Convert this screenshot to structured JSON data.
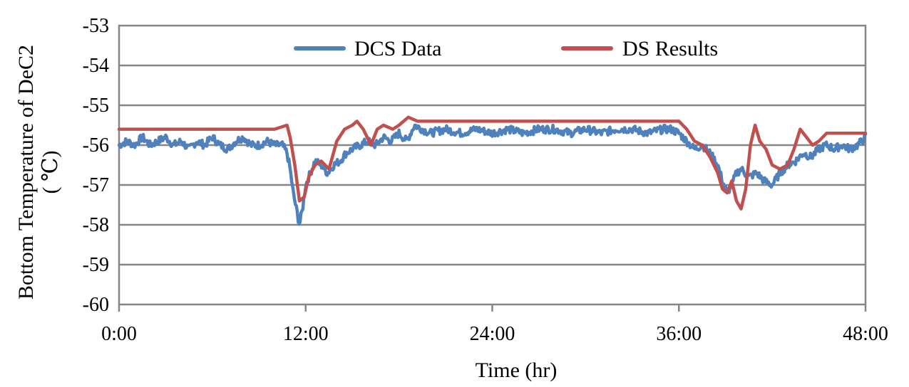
{
  "chart_data": {
    "type": "line",
    "title": "",
    "xlabel": "Time (hr)",
    "ylabel_lines": [
      "Bottom Temperature of DeC2",
      "( ℃)"
    ],
    "xlim": [
      0,
      48
    ],
    "ylim": [
      -60,
      -53
    ],
    "x_ticks": [
      0,
      12,
      24,
      36,
      48
    ],
    "x_tick_labels": [
      "0:00",
      "12:00",
      "24:00",
      "36:00",
      "48:00"
    ],
    "y_ticks": [
      -53,
      -54,
      -55,
      -56,
      -57,
      -58,
      -59,
      -60
    ],
    "y_tick_labels": [
      "-53",
      "-54",
      "-55",
      "-56",
      "-57",
      "-58",
      "-59",
      "-60"
    ],
    "grid": "horizontal",
    "legend_position": "top",
    "series": [
      {
        "name": "DCS Data",
        "color": "#4f81bd",
        "x": [
          0,
          0.5,
          1,
          1.5,
          2,
          2.5,
          3,
          3.5,
          4,
          4.5,
          5,
          5.5,
          6,
          6.5,
          7,
          7.5,
          8,
          8.5,
          9,
          9.5,
          10,
          10.5,
          10.8,
          11,
          11.2,
          11.4,
          11.6,
          11.8,
          12.0,
          12.3,
          12.6,
          13.0,
          13.4,
          13.8,
          14.2,
          14.6,
          15.0,
          15.5,
          16,
          16.5,
          17,
          17.5,
          18,
          18.5,
          19,
          19.5,
          20,
          21,
          22,
          23,
          24,
          25,
          26,
          27,
          28,
          29,
          30,
          31,
          32,
          33,
          34,
          35,
          35.5,
          36,
          36.5,
          37,
          37.5,
          38,
          38.5,
          38.8,
          39.1,
          39.4,
          39.7,
          40.0,
          40.5,
          41.0,
          41.5,
          42.0,
          42.5,
          43.0,
          43.5,
          44.0,
          44.5,
          45.0,
          45.5,
          46.0,
          46.5,
          47.0,
          47.5,
          48
        ],
        "y": [
          -56.0,
          -55.9,
          -56.0,
          -55.8,
          -56.0,
          -55.9,
          -55.8,
          -56.0,
          -55.9,
          -56.1,
          -55.9,
          -56.0,
          -55.8,
          -56.0,
          -56.1,
          -55.9,
          -55.8,
          -56.0,
          -56.0,
          -55.9,
          -56.0,
          -56.0,
          -56.2,
          -56.6,
          -57.2,
          -57.6,
          -58.0,
          -57.6,
          -57.0,
          -56.7,
          -56.4,
          -56.5,
          -56.7,
          -56.5,
          -56.4,
          -56.2,
          -56.1,
          -56.0,
          -55.9,
          -56.0,
          -55.8,
          -55.9,
          -55.7,
          -55.9,
          -55.5,
          -55.6,
          -55.7,
          -55.6,
          -55.7,
          -55.6,
          -55.7,
          -55.6,
          -55.7,
          -55.6,
          -55.6,
          -55.7,
          -55.6,
          -55.7,
          -55.6,
          -55.6,
          -55.7,
          -55.6,
          -55.6,
          -55.7,
          -55.9,
          -56.1,
          -56.0,
          -56.2,
          -56.5,
          -56.9,
          -57.2,
          -57.0,
          -56.7,
          -56.6,
          -56.8,
          -56.7,
          -56.9,
          -57.0,
          -56.7,
          -56.5,
          -56.4,
          -56.2,
          -56.3,
          -56.1,
          -56.0,
          -56.1,
          -56.0,
          -56.1,
          -56.0,
          -55.8
        ],
        "noise": 0.1
      },
      {
        "name": "DS Results",
        "color": "#c0504d",
        "x": [
          0,
          5,
          10,
          10.8,
          11.0,
          11.3,
          11.6,
          11.9,
          12.2,
          12.6,
          13.0,
          13.5,
          14.0,
          14.5,
          15.0,
          15.3,
          15.7,
          16.2,
          16.6,
          17.0,
          17.6,
          18.0,
          18.6,
          19.2,
          20,
          24,
          30,
          36,
          36.5,
          37,
          37.5,
          38,
          38.5,
          38.8,
          39.1,
          39.4,
          39.7,
          40.0,
          40.3,
          40.6,
          40.9,
          41.2,
          41.6,
          42.0,
          42.5,
          43.0,
          43.4,
          43.8,
          44.2,
          44.6,
          45.0,
          45.5,
          46,
          47,
          48
        ],
        "y": [
          -55.6,
          -55.6,
          -55.6,
          -55.5,
          -55.8,
          -56.5,
          -57.4,
          -57.3,
          -56.8,
          -56.5,
          -56.4,
          -56.6,
          -55.9,
          -55.6,
          -55.5,
          -55.4,
          -55.6,
          -56.0,
          -55.6,
          -55.5,
          -55.6,
          -55.5,
          -55.3,
          -55.4,
          -55.4,
          -55.4,
          -55.4,
          -55.4,
          -55.6,
          -55.9,
          -56.0,
          -56.3,
          -56.7,
          -57.1,
          -57.2,
          -56.9,
          -57.4,
          -57.6,
          -57.1,
          -56.0,
          -55.5,
          -55.9,
          -56.1,
          -56.5,
          -56.6,
          -56.5,
          -56.1,
          -55.6,
          -55.8,
          -56.0,
          -55.9,
          -55.7,
          -55.7,
          -55.7,
          -55.7
        ]
      }
    ]
  }
}
